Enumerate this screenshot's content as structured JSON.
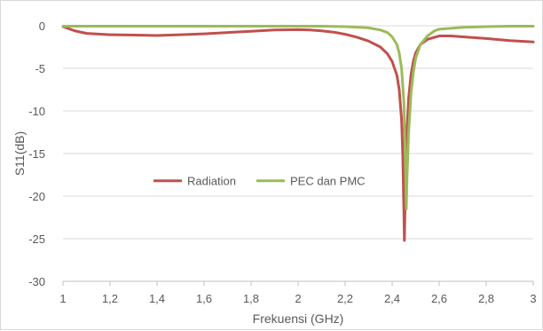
{
  "chart_data": {
    "type": "line",
    "title": "",
    "xlabel": "Frekuensi (GHz)",
    "ylabel": "S11(dB)",
    "xlim": [
      1,
      3
    ],
    "ylim": [
      -30,
      0
    ],
    "x_ticks": [
      "1",
      "1,2",
      "1,4",
      "1,6",
      "1,8",
      "2",
      "2,2",
      "2,4",
      "2,6",
      "2,8",
      "3"
    ],
    "y_ticks": [
      "0",
      "-5",
      "-10",
      "-15",
      "-20",
      "-25",
      "-30"
    ],
    "grid": "horizontal",
    "legend_position": "center",
    "series": [
      {
        "name": "Radiation",
        "color": "#c0504d",
        "points": [
          [
            1.0,
            -0.1
          ],
          [
            1.05,
            -0.6
          ],
          [
            1.1,
            -0.9
          ],
          [
            1.2,
            -1.05
          ],
          [
            1.3,
            -1.1
          ],
          [
            1.4,
            -1.15
          ],
          [
            1.5,
            -1.05
          ],
          [
            1.6,
            -0.95
          ],
          [
            1.7,
            -0.8
          ],
          [
            1.8,
            -0.65
          ],
          [
            1.9,
            -0.5
          ],
          [
            2.0,
            -0.45
          ],
          [
            2.05,
            -0.5
          ],
          [
            2.1,
            -0.6
          ],
          [
            2.15,
            -0.75
          ],
          [
            2.2,
            -1.0
          ],
          [
            2.25,
            -1.35
          ],
          [
            2.3,
            -1.8
          ],
          [
            2.35,
            -2.5
          ],
          [
            2.38,
            -3.3
          ],
          [
            2.4,
            -4.2
          ],
          [
            2.42,
            -5.8
          ],
          [
            2.43,
            -7.5
          ],
          [
            2.44,
            -11.0
          ],
          [
            2.445,
            -15.0
          ],
          [
            2.45,
            -22.0
          ],
          [
            2.452,
            -25.2
          ],
          [
            2.455,
            -21.0
          ],
          [
            2.46,
            -14.0
          ],
          [
            2.47,
            -8.5
          ],
          [
            2.48,
            -5.8
          ],
          [
            2.49,
            -4.2
          ],
          [
            2.5,
            -3.2
          ],
          [
            2.52,
            -2.2
          ],
          [
            2.55,
            -1.6
          ],
          [
            2.6,
            -1.2
          ],
          [
            2.65,
            -1.2
          ],
          [
            2.7,
            -1.3
          ],
          [
            2.8,
            -1.5
          ],
          [
            2.9,
            -1.75
          ],
          [
            3.0,
            -1.9
          ]
        ]
      },
      {
        "name": "PEC dan PMC",
        "color": "#9bbb59",
        "points": [
          [
            1.0,
            -0.05
          ],
          [
            1.2,
            -0.05
          ],
          [
            1.4,
            -0.05
          ],
          [
            1.6,
            -0.05
          ],
          [
            1.8,
            -0.05
          ],
          [
            2.0,
            -0.05
          ],
          [
            2.1,
            -0.05
          ],
          [
            2.2,
            -0.1
          ],
          [
            2.3,
            -0.25
          ],
          [
            2.35,
            -0.5
          ],
          [
            2.38,
            -0.8
          ],
          [
            2.4,
            -1.3
          ],
          [
            2.42,
            -2.2
          ],
          [
            2.43,
            -3.2
          ],
          [
            2.44,
            -5.0
          ],
          [
            2.45,
            -9.0
          ],
          [
            2.455,
            -14.5
          ],
          [
            2.46,
            -21.5
          ],
          [
            2.463,
            -18.0
          ],
          [
            2.47,
            -12.5
          ],
          [
            2.48,
            -8.0
          ],
          [
            2.49,
            -5.5
          ],
          [
            2.5,
            -3.8
          ],
          [
            2.52,
            -2.2
          ],
          [
            2.55,
            -1.2
          ],
          [
            2.58,
            -0.6
          ],
          [
            2.6,
            -0.4
          ],
          [
            2.7,
            -0.2
          ],
          [
            2.8,
            -0.1
          ],
          [
            2.9,
            -0.05
          ],
          [
            3.0,
            -0.05
          ]
        ]
      }
    ]
  }
}
